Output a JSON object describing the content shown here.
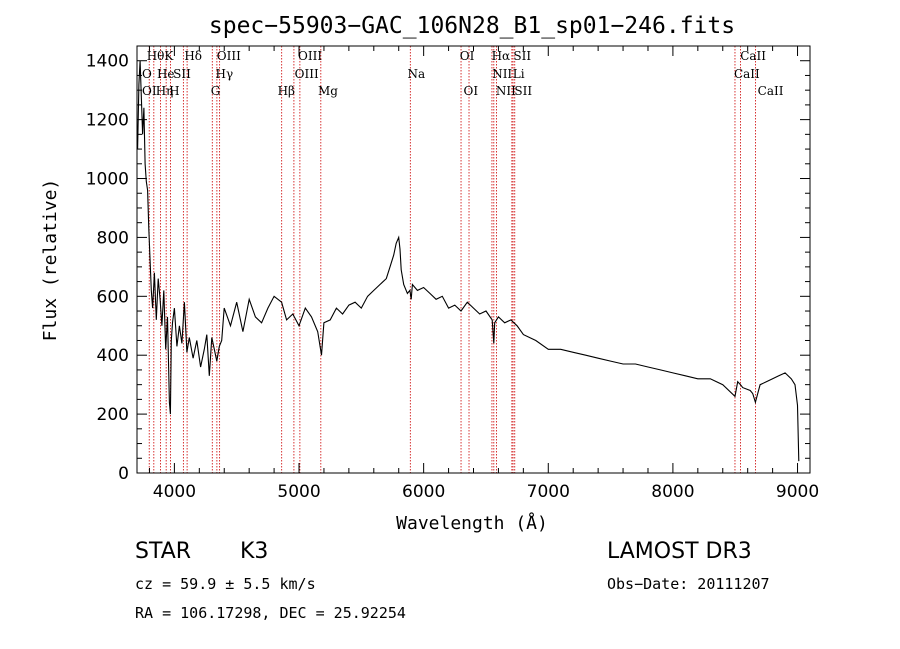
{
  "chart_data": {
    "type": "line",
    "title": "spec−55903−GAC_106N28_B1_sp01−246.fits",
    "xlabel": "Wavelength (Å)",
    "ylabel": "Flux (relative)",
    "xlim": [
      3700,
      9100
    ],
    "ylim": [
      0,
      1450
    ],
    "xticks": [
      4000,
      5000,
      6000,
      7000,
      8000,
      9000
    ],
    "yticks": [
      0,
      200,
      400,
      600,
      800,
      1000,
      1200,
      1400
    ],
    "xtick_labels": [
      "4000",
      "5000",
      "6000",
      "7000",
      "8000",
      "9000"
    ],
    "ytick_labels": [
      "0",
      "200",
      "400",
      "600",
      "800",
      "1000",
      "1200",
      "1400"
    ],
    "grid": false,
    "series": [
      {
        "name": "spectrum",
        "x": [
          3705,
          3715,
          3725,
          3735,
          3745,
          3755,
          3765,
          3775,
          3785,
          3795,
          3805,
          3815,
          3825,
          3840,
          3855,
          3870,
          3885,
          3900,
          3915,
          3930,
          3945,
          3960,
          3968,
          3975,
          3985,
          4000,
          4020,
          4040,
          4060,
          4080,
          4100,
          4120,
          4150,
          4180,
          4210,
          4240,
          4260,
          4280,
          4300,
          4320,
          4340,
          4360,
          4380,
          4400,
          4450,
          4500,
          4550,
          4600,
          4650,
          4700,
          4750,
          4800,
          4860,
          4900,
          4950,
          5000,
          5050,
          5100,
          5150,
          5180,
          5200,
          5250,
          5300,
          5350,
          5400,
          5450,
          5500,
          5550,
          5600,
          5650,
          5700,
          5730,
          5760,
          5780,
          5800,
          5810,
          5820,
          5840,
          5870,
          5890,
          5900,
          5910,
          5950,
          6000,
          6050,
          6100,
          6150,
          6200,
          6250,
          6300,
          6350,
          6400,
          6450,
          6500,
          6550,
          6563,
          6570,
          6600,
          6650,
          6700,
          6750,
          6800,
          6900,
          7000,
          7100,
          7200,
          7300,
          7400,
          7500,
          7600,
          7700,
          7800,
          7900,
          8000,
          8100,
          8200,
          8300,
          8400,
          8498,
          8520,
          8542,
          8560,
          8620,
          8640,
          8662,
          8700,
          8800,
          8850,
          8900,
          8950,
          8980,
          9000,
          9010
        ],
        "y": [
          1100,
          1320,
          1400,
          1270,
          1150,
          1240,
          1050,
          990,
          960,
          830,
          720,
          620,
          560,
          680,
          520,
          660,
          590,
          500,
          620,
          420,
          530,
          240,
          200,
          450,
          510,
          560,
          430,
          500,
          440,
          580,
          410,
          460,
          390,
          450,
          360,
          420,
          470,
          330,
          460,
          420,
          380,
          430,
          450,
          560,
          500,
          580,
          480,
          590,
          530,
          510,
          560,
          600,
          580,
          520,
          540,
          500,
          560,
          530,
          480,
          400,
          510,
          520,
          560,
          540,
          570,
          580,
          560,
          600,
          620,
          640,
          660,
          700,
          740,
          780,
          800,
          760,
          690,
          640,
          610,
          620,
          590,
          640,
          620,
          630,
          610,
          590,
          600,
          560,
          570,
          550,
          580,
          560,
          540,
          550,
          520,
          440,
          510,
          530,
          510,
          520,
          500,
          470,
          450,
          420,
          420,
          410,
          400,
          390,
          380,
          370,
          370,
          360,
          350,
          340,
          330,
          320,
          320,
          300,
          260,
          310,
          300,
          290,
          280,
          270,
          240,
          300,
          320,
          330,
          340,
          320,
          300,
          230,
          40
        ]
      }
    ],
    "lines": [
      {
        "name": "Hθ",
        "wavelength": 3798
      },
      {
        "name": "Hη",
        "wavelength": 3835
      },
      {
        "name": "He",
        "wavelength": 3889
      },
      {
        "name": "K",
        "wavelength": 3934
      },
      {
        "name": "H",
        "wavelength": 3969
      },
      {
        "name": "SII",
        "wavelength": 4072
      },
      {
        "name": "Hδ",
        "wavelength": 4102
      },
      {
        "name": "G",
        "wavelength": 4304
      },
      {
        "name": "Hγ",
        "wavelength": 4341
      },
      {
        "name": "OIII",
        "wavelength": 4363
      },
      {
        "name": "Hβ",
        "wavelength": 4861
      },
      {
        "name": "OIII",
        "wavelength": 4959
      },
      {
        "name": "OIII",
        "wavelength": 5007
      },
      {
        "name": "Mg",
        "wavelength": 5175
      },
      {
        "name": "Na",
        "wavelength": 5893
      },
      {
        "name": "OI",
        "wavelength": 6300
      },
      {
        "name": "OI",
        "wavelength": 6364
      },
      {
        "name": "NII",
        "wavelength": 6548
      },
      {
        "name": "Hα",
        "wavelength": 6563
      },
      {
        "name": "NII",
        "wavelength": 6584
      },
      {
        "name": "Li",
        "wavelength": 6708
      },
      {
        "name": "SII",
        "wavelength": 6717
      },
      {
        "name": "SII",
        "wavelength": 6731
      },
      {
        "name": "CaII",
        "wavelength": 8498
      },
      {
        "name": "CaII",
        "wavelength": 8542
      },
      {
        "name": "CaII",
        "wavelength": 8662
      }
    ],
    "line_labels": [
      {
        "text": "Hθ",
        "row": 0,
        "wavelength": 3778,
        "font": "serif"
      },
      {
        "text": "K",
        "row": 0,
        "wavelength": 3920,
        "font": "serif"
      },
      {
        "text": "Hδ",
        "row": 0,
        "wavelength": 4080,
        "font": "serif"
      },
      {
        "text": "OIII",
        "row": 0,
        "wavelength": 4340,
        "font": "serif"
      },
      {
        "text": "OIII",
        "row": 0,
        "wavelength": 4992,
        "font": "serif"
      },
      {
        "text": "OI",
        "row": 0,
        "wavelength": 6290,
        "font": "serif"
      },
      {
        "text": "Hα",
        "row": 0,
        "wavelength": 6545,
        "font": "serif"
      },
      {
        "text": "SII",
        "row": 0,
        "wavelength": 6720,
        "font": "serif"
      },
      {
        "text": "CaII",
        "row": 0,
        "wavelength": 8540,
        "font": "serif"
      },
      {
        "text": "O",
        "row": 1,
        "wavelength": 3740,
        "font": "serif"
      },
      {
        "text": "He",
        "row": 1,
        "wavelength": 3860,
        "font": "serif"
      },
      {
        "text": "SII",
        "row": 1,
        "wavelength": 3990,
        "font": "serif"
      },
      {
        "text": "Hγ",
        "row": 1,
        "wavelength": 4330,
        "font": "serif"
      },
      {
        "text": "OIII",
        "row": 1,
        "wavelength": 4965,
        "font": "serif"
      },
      {
        "text": "Na",
        "row": 1,
        "wavelength": 5870,
        "font": "serif"
      },
      {
        "text": "NII",
        "row": 1,
        "wavelength": 6550,
        "font": "serif"
      },
      {
        "text": "Li",
        "row": 1,
        "wavelength": 6715,
        "font": "serif"
      },
      {
        "text": "CaII",
        "row": 1,
        "wavelength": 8490,
        "font": "serif"
      },
      {
        "text": "OI",
        "row": 2,
        "wavelength": 3740,
        "font": "serif"
      },
      {
        "text": "Hη",
        "row": 2,
        "wavelength": 3850,
        "font": "serif"
      },
      {
        "text": "H",
        "row": 2,
        "wavelength": 3958,
        "font": "serif"
      },
      {
        "text": "G",
        "row": 2,
        "wavelength": 4292,
        "font": "serif"
      },
      {
        "text": "Hβ",
        "row": 2,
        "wavelength": 4828,
        "font": "serif"
      },
      {
        "text": "Mg",
        "row": 2,
        "wavelength": 5152,
        "font": "serif"
      },
      {
        "text": "OI",
        "row": 2,
        "wavelength": 6320,
        "font": "serif"
      },
      {
        "text": "NII",
        "row": 2,
        "wavelength": 6580,
        "font": "serif"
      },
      {
        "text": "SII",
        "row": 2,
        "wavelength": 6728,
        "font": "serif"
      },
      {
        "text": "CaII",
        "row": 2,
        "wavelength": 8680,
        "font": "serif"
      }
    ]
  },
  "info": {
    "object_class": "STAR",
    "subclass": "K3",
    "survey": "LAMOST DR3",
    "cz": "cz = 59.9 ± 5.5 km/s",
    "obs_date": "Obs−Date: 20111207",
    "coords": "RA = 106.17298, DEC =  25.92254"
  },
  "colors": {
    "line_marker": "#cc0000",
    "spectrum": "#000000",
    "axes": "#000000"
  }
}
